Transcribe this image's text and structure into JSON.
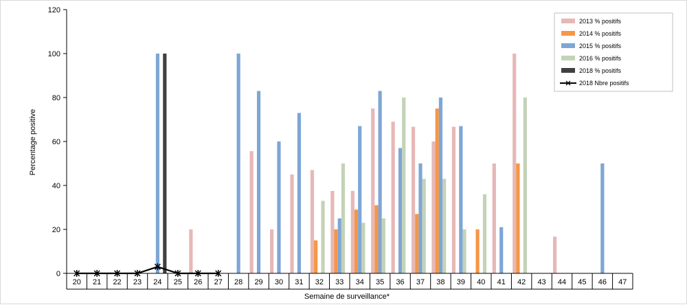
{
  "chart_data": {
    "type": "bar",
    "xlabel": "Semaine de surveillance*",
    "ylabel": "Percentage positive",
    "ylim": [
      0,
      120
    ],
    "yticks": [
      0,
      20,
      40,
      60,
      80,
      100,
      120
    ],
    "categories": [
      "20",
      "21",
      "22",
      "23",
      "24",
      "25",
      "26",
      "27",
      "28",
      "29",
      "30",
      "31",
      "32",
      "33",
      "34",
      "35",
      "36",
      "37",
      "38",
      "39",
      "40",
      "41",
      "42",
      "43",
      "44",
      "45",
      "46",
      "47"
    ],
    "series": [
      {
        "name": "2013 % positifs",
        "kind": "bar",
        "color": "#e6b8b7",
        "values": [
          null,
          null,
          null,
          null,
          null,
          null,
          20,
          null,
          null,
          55.6,
          20,
          45,
          47,
          37.5,
          37.5,
          75,
          69,
          66.7,
          60,
          66.7,
          null,
          50,
          100,
          null,
          16.7,
          null,
          null,
          null
        ]
      },
      {
        "name": "2014 % positifs",
        "kind": "bar",
        "color": "#f79646",
        "values": [
          null,
          null,
          null,
          null,
          null,
          null,
          null,
          null,
          null,
          null,
          null,
          null,
          15,
          20,
          29,
          31,
          null,
          27,
          75,
          null,
          20,
          null,
          50,
          null,
          null,
          null,
          null,
          null
        ]
      },
      {
        "name": "2015 % positifs",
        "kind": "bar",
        "color": "#7ea6d6",
        "values": [
          null,
          null,
          null,
          null,
          100,
          null,
          null,
          null,
          100,
          83,
          60,
          73,
          null,
          25,
          67,
          83,
          57,
          50,
          80,
          67,
          null,
          21,
          null,
          null,
          null,
          null,
          50,
          null
        ]
      },
      {
        "name": "2016 % positifs",
        "kind": "bar",
        "color": "#c4d3b8",
        "values": [
          null,
          null,
          null,
          null,
          null,
          null,
          null,
          null,
          null,
          null,
          null,
          null,
          33,
          50,
          23,
          25,
          80,
          43,
          43,
          20,
          36,
          null,
          80,
          null,
          null,
          null,
          null,
          null
        ]
      },
      {
        "name": "2018 % positifs",
        "kind": "bar",
        "color": "#404040",
        "values": [
          null,
          null,
          null,
          null,
          100,
          null,
          null,
          null,
          null,
          null,
          null,
          null,
          null,
          null,
          null,
          null,
          null,
          null,
          null,
          null,
          null,
          null,
          null,
          null,
          null,
          null,
          null,
          null
        ]
      },
      {
        "name": "2018 Nbre positifs",
        "kind": "line",
        "color": "#000000",
        "values": [
          0,
          0,
          0,
          0,
          3,
          0,
          0,
          0,
          null,
          null,
          null,
          null,
          null,
          null,
          null,
          null,
          null,
          null,
          null,
          null,
          null,
          null,
          null,
          null,
          null,
          null,
          null,
          null
        ]
      }
    ],
    "grid": false,
    "legend": "top-right"
  }
}
